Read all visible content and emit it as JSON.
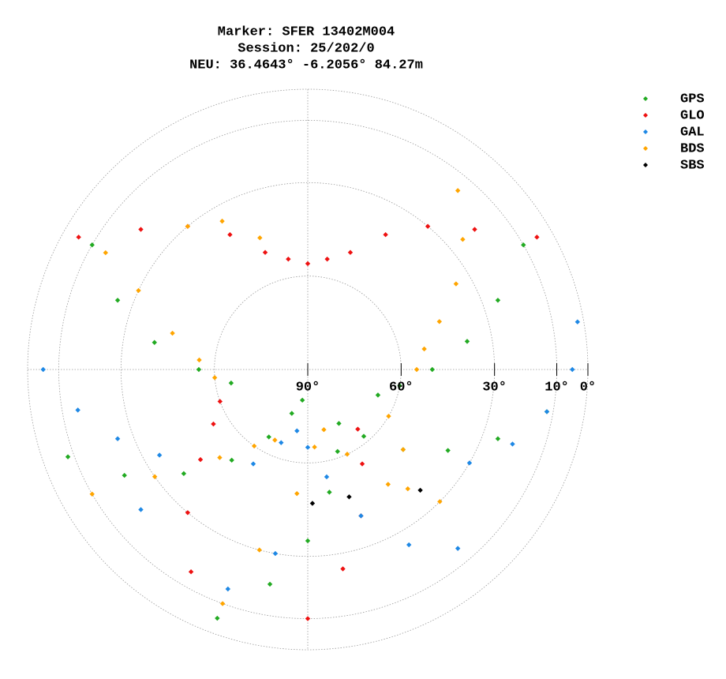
{
  "chart_data": {
    "type": "skyplot",
    "title": [
      "Marker: SFER 13402M004",
      "Session: 25/202/0",
      "NEU: 36.4643° -6.2056° 84.27m"
    ],
    "rlim": [
      90,
      0
    ],
    "rticks": [
      {
        "value": 90,
        "label": "90°"
      },
      {
        "value": 60,
        "label": "60°"
      },
      {
        "value": 30,
        "label": "30°"
      },
      {
        "value": 10,
        "label": "10°"
      },
      {
        "value": 0,
        "label": "0°"
      }
    ],
    "grid": true,
    "legend": "upper right",
    "series": [
      {
        "name": "GPS",
        "color": "#22aa22",
        "azimuth": [
          200,
          190,
          180,
          170,
          160,
          150,
          140,
          130,
          120,
          110,
          100,
          250,
          240,
          230,
          220,
          210,
          200,
          190,
          300,
          290,
          280,
          270,
          260,
          60,
          70,
          80,
          90,
          100,
          110
        ],
        "elevation": [
          5,
          20,
          35,
          50,
          62,
          70,
          62,
          50,
          38,
          25,
          12,
          8,
          22,
          38,
          52,
          65,
          75,
          80,
          10,
          25,
          40,
          55,
          65,
          10,
          25,
          38,
          50,
          60,
          66
        ]
      },
      {
        "name": "GLO",
        "color": "#ee1111",
        "azimuth": [
          330,
          340,
          350,
          0,
          10,
          20,
          30,
          310,
          320,
          50,
          40,
          180,
          170,
          160,
          150,
          140,
          210,
          220,
          230,
          240,
          250,
          300,
          60
        ],
        "elevation": [
          40,
          50,
          54,
          56,
          54,
          50,
          40,
          20,
          30,
          20,
          30,
          10,
          25,
          40,
          55,
          65,
          15,
          30,
          45,
          55,
          60,
          5,
          5
        ]
      },
      {
        "name": "GAL",
        "color": "#1e88e5",
        "azimuth": [
          160,
          170,
          180,
          190,
          200,
          210,
          120,
          110,
          100,
          90,
          80,
          270,
          260,
          250,
          240,
          230,
          150,
          140,
          200,
          190
        ],
        "elevation": [
          40,
          55,
          65,
          70,
          65,
          55,
          30,
          20,
          12,
          5,
          2,
          5,
          15,
          25,
          35,
          20,
          25,
          15,
          15,
          30
        ]
      },
      {
        "name": "BDS",
        "color": "#ffa500",
        "azimuth": [
          200,
          195,
          185,
          175,
          165,
          155,
          145,
          135,
          240,
          235,
          225,
          215,
          205,
          300,
          295,
          285,
          275,
          265,
          40,
          50,
          60,
          70,
          80,
          90,
          120,
          130,
          140,
          320,
          330,
          340
        ],
        "elevation": [
          10,
          30,
          50,
          65,
          70,
          60,
          45,
          30,
          10,
          30,
          50,
          60,
          65,
          15,
          30,
          45,
          55,
          60,
          15,
          25,
          35,
          45,
          52,
          55,
          60,
          50,
          40,
          30,
          35,
          45
        ]
      },
      {
        "name": "SBS",
        "color": "#000000",
        "azimuth": [
          178,
          162,
          137
        ],
        "elevation": [
          47,
          47,
          37
        ]
      }
    ]
  }
}
